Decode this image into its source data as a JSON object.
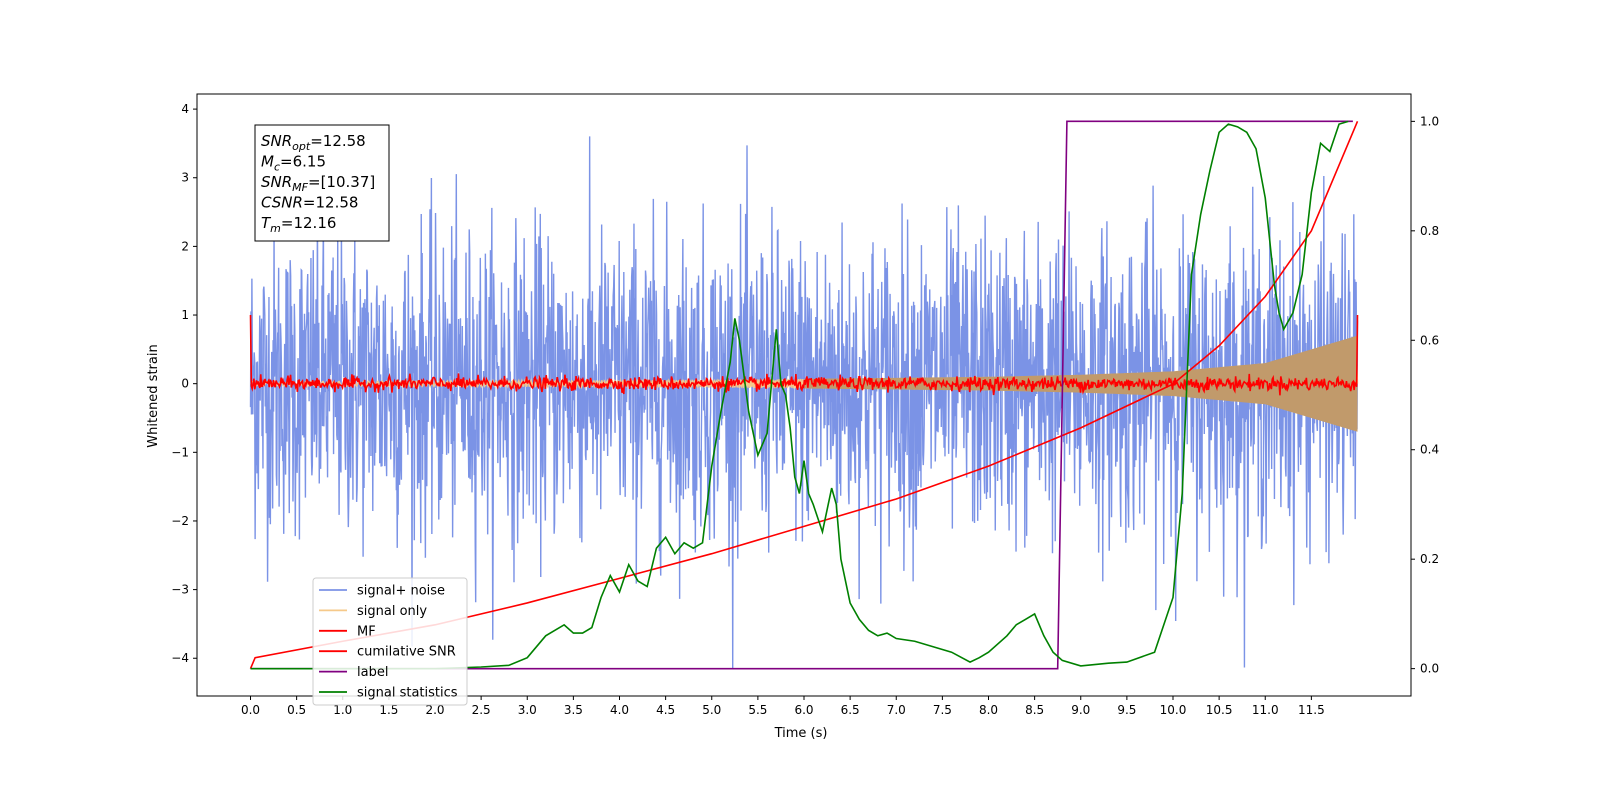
{
  "chart_data": {
    "type": "line",
    "xlabel": "Time (s)",
    "ylabel": "Whitened strain",
    "xlim": [
      -0.58,
      12.58
    ],
    "ylim": [
      -4.55,
      4.22
    ],
    "ylim_right": [
      -0.05,
      1.05
    ],
    "x_ticks": [
      "0.0",
      "0.5",
      "1.0",
      "1.5",
      "2.0",
      "2.5",
      "3.0",
      "3.5",
      "4.0",
      "4.5",
      "5.0",
      "5.5",
      "6.0",
      "6.5",
      "7.0",
      "7.5",
      "8.0",
      "8.5",
      "9.0",
      "9.5",
      "10.0",
      "10.5",
      "11.0",
      "11.5"
    ],
    "y_ticks": [
      "4",
      "3",
      "2",
      "1",
      "0",
      "−1",
      "−2",
      "−3",
      "−4"
    ],
    "y_ticks_right": [
      "1.0",
      "0.8",
      "0.6",
      "0.4",
      "0.2",
      "0.0"
    ],
    "legend_position": "lower-left",
    "annotation_box": [
      {
        "label": "SNR",
        "sub": "opt",
        "value": "=12.58"
      },
      {
        "label": "M",
        "sub": "c",
        "value": "=6.15"
      },
      {
        "label": "SNR",
        "sub": "MF",
        "value": "=[10.37]"
      },
      {
        "label": "CSNR",
        "sub": "",
        "value": "=12.58"
      },
      {
        "label": "T",
        "sub": "m",
        "value": "=12.16"
      }
    ],
    "series": [
      {
        "name": "signal+ noise",
        "color": "#7b93e6",
        "axis": "left",
        "style": "noise",
        "x_range": [
          0,
          12.0
        ],
        "amplitude_std": 1.1,
        "peak_max": 3.8,
        "peak_min": -4.15
      },
      {
        "name": "signal only",
        "color": "#f6c98a",
        "axis": "left",
        "style": "chirp",
        "x_range": [
          0,
          12.0
        ],
        "envelope_x": [
          0,
          2,
          4,
          6,
          8,
          9,
          10,
          11,
          12
        ],
        "envelope_y": [
          0.03,
          0.04,
          0.05,
          0.07,
          0.1,
          0.13,
          0.18,
          0.3,
          0.7
        ]
      },
      {
        "name": "MF",
        "color": "#ff0000",
        "axis": "left",
        "style": "noisy-flat",
        "x_range": [
          0,
          12.0
        ],
        "start_value": 1.0,
        "end_value": 1.0,
        "amplitude_std": 0.05
      },
      {
        "name": "cumilative SNR",
        "color": "#ff0000",
        "axis": "right",
        "x": [
          0,
          0.05,
          1,
          2,
          3,
          4,
          5,
          6,
          7,
          8,
          9,
          10,
          10.5,
          11,
          11.5,
          12
        ],
        "y": [
          0.0,
          0.02,
          0.05,
          0.08,
          0.12,
          0.165,
          0.21,
          0.26,
          0.31,
          0.37,
          0.44,
          0.52,
          0.59,
          0.68,
          0.8,
          1.0
        ]
      },
      {
        "name": "label",
        "color": "#800080",
        "axis": "right",
        "x": [
          0,
          8.75,
          8.85,
          11.95
        ],
        "y": [
          0,
          0,
          1,
          1
        ]
      },
      {
        "name": "signal statistics",
        "color": "#008000",
        "axis": "right",
        "x": [
          0,
          0.5,
          1,
          2,
          2.5,
          2.8,
          3.0,
          3.2,
          3.4,
          3.5,
          3.6,
          3.7,
          3.8,
          3.9,
          4.0,
          4.1,
          4.2,
          4.3,
          4.4,
          4.5,
          4.6,
          4.7,
          4.8,
          4.9,
          5.0,
          5.1,
          5.2,
          5.25,
          5.3,
          5.4,
          5.5,
          5.6,
          5.7,
          5.75,
          5.8,
          5.85,
          5.9,
          5.95,
          6.0,
          6.05,
          6.1,
          6.2,
          6.3,
          6.35,
          6.4,
          6.5,
          6.6,
          6.7,
          6.8,
          6.9,
          7.0,
          7.2,
          7.4,
          7.6,
          7.8,
          7.9,
          8.0,
          8.2,
          8.3,
          8.4,
          8.5,
          8.6,
          8.7,
          8.8,
          9.0,
          9.3,
          9.5,
          9.8,
          10.0,
          10.1,
          10.2,
          10.3,
          10.4,
          10.5,
          10.6,
          10.7,
          10.8,
          10.9,
          11.0,
          11.1,
          11.15,
          11.2,
          11.3,
          11.4,
          11.5,
          11.6,
          11.7,
          11.8,
          11.9
        ],
        "y": [
          0.0,
          0.0,
          0.0,
          0.0,
          0.003,
          0.006,
          0.02,
          0.06,
          0.08,
          0.065,
          0.065,
          0.075,
          0.13,
          0.17,
          0.14,
          0.19,
          0.16,
          0.15,
          0.22,
          0.24,
          0.21,
          0.23,
          0.22,
          0.23,
          0.37,
          0.47,
          0.56,
          0.64,
          0.6,
          0.47,
          0.39,
          0.43,
          0.62,
          0.52,
          0.5,
          0.44,
          0.35,
          0.32,
          0.38,
          0.32,
          0.3,
          0.25,
          0.33,
          0.3,
          0.2,
          0.12,
          0.09,
          0.07,
          0.06,
          0.065,
          0.055,
          0.05,
          0.04,
          0.03,
          0.012,
          0.02,
          0.03,
          0.06,
          0.08,
          0.09,
          0.1,
          0.06,
          0.03,
          0.015,
          0.005,
          0.01,
          0.012,
          0.03,
          0.13,
          0.32,
          0.72,
          0.83,
          0.91,
          0.98,
          0.995,
          0.99,
          0.98,
          0.95,
          0.86,
          0.7,
          0.65,
          0.62,
          0.65,
          0.72,
          0.87,
          0.96,
          0.945,
          0.995,
          1.0
        ]
      }
    ]
  }
}
